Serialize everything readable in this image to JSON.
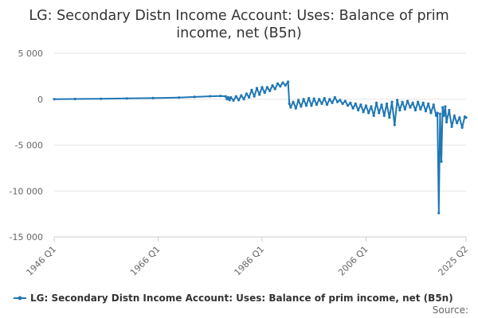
{
  "chart_data": {
    "type": "line",
    "title": "LG: Secondary Distn Income Account: Uses: Balance of prim income, net (B5n)",
    "title_lines": [
      "LG: Secondary Distn Income Account: Uses: Balance of prim",
      "income, net (B5n)"
    ],
    "xlabel": "",
    "ylabel": "",
    "ylim": [
      -15000,
      5000
    ],
    "yticks": [
      5000,
      0,
      -5000,
      -10000,
      -15000
    ],
    "ytick_labels": [
      "5 000",
      "0",
      "-5 000",
      "-10 000",
      "-15 000"
    ],
    "xticks": [
      "1946 Q1",
      "1966 Q1",
      "1986 Q1",
      "2006 Q1",
      "2025 Q2"
    ],
    "grid": true,
    "legend_position": "bottom",
    "color": "#1f77b4",
    "series": [
      {
        "name": "LG: Secondary Distn Income Account: Uses: Balance of prim income, net (B5n)",
        "x": [
          1946.0,
          1950.0,
          1955.0,
          1960.0,
          1965.0,
          1970.0,
          1973.0,
          1976.0,
          1978.0,
          1979.0,
          1979.25,
          1979.5,
          1979.75,
          1980.0,
          1980.5,
          1981.0,
          1981.5,
          1982.0,
          1982.5,
          1983.0,
          1983.5,
          1984.0,
          1984.5,
          1985.0,
          1985.5,
          1986.0,
          1986.5,
          1987.0,
          1987.5,
          1988.0,
          1988.5,
          1989.0,
          1989.5,
          1990.0,
          1990.5,
          1991.0,
          1991.25,
          1991.5,
          1992.0,
          1992.5,
          1993.0,
          1993.5,
          1994.0,
          1994.5,
          1995.0,
          1995.5,
          1996.0,
          1996.5,
          1997.0,
          1997.5,
          1998.0,
          1998.5,
          1999.0,
          1999.5,
          2000.0,
          2000.5,
          2001.0,
          2001.5,
          2002.0,
          2002.5,
          2003.0,
          2003.5,
          2004.0,
          2004.5,
          2005.0,
          2005.5,
          2006.0,
          2006.5,
          2007.0,
          2007.5,
          2008.0,
          2008.5,
          2009.0,
          2009.5,
          2010.0,
          2010.5,
          2011.0,
          2011.5,
          2012.0,
          2012.5,
          2013.0,
          2013.5,
          2014.0,
          2014.5,
          2015.0,
          2015.5,
          2016.0,
          2016.5,
          2017.0,
          2017.5,
          2018.0,
          2018.5,
          2019.0,
          2019.5,
          2019.75,
          2020.0,
          2020.25,
          2020.5,
          2020.75,
          2021.0,
          2021.25,
          2021.5,
          2022.0,
          2022.5,
          2023.0,
          2023.5,
          2024.0,
          2024.5,
          2025.0,
          2025.25
        ],
        "values": [
          0,
          20,
          40,
          80,
          120,
          180,
          250,
          320,
          350,
          300,
          0,
          200,
          -100,
          200,
          -150,
          300,
          -100,
          400,
          0,
          600,
          200,
          1000,
          300,
          1200,
          500,
          1300,
          700,
          1300,
          900,
          1500,
          1100,
          1700,
          1400,
          1800,
          1500,
          1900,
          -500,
          -900,
          -300,
          -1000,
          -100,
          -800,
          0,
          -700,
          100,
          -700,
          50,
          -600,
          0,
          -500,
          100,
          -600,
          0,
          -400,
          200,
          -300,
          -100,
          -500,
          -200,
          -700,
          -400,
          -1000,
          -500,
          -1200,
          -600,
          -1400,
          -700,
          -1500,
          -800,
          -1800,
          -400,
          -1500,
          -600,
          -1800,
          -500,
          -2000,
          -300,
          -2800,
          -100,
          -1200,
          -300,
          -1100,
          -200,
          -900,
          -400,
          -1200,
          -300,
          -1100,
          -400,
          -1300,
          -500,
          -1500,
          -600,
          -1800,
          -1500,
          -12400,
          -1600,
          -6800,
          -900,
          -1800,
          -800,
          -2500,
          -1200,
          -3000,
          -1800,
          -2600,
          -2000,
          -3100,
          -1900,
          -2000
        ]
      }
    ],
    "source_label": "Source:"
  }
}
